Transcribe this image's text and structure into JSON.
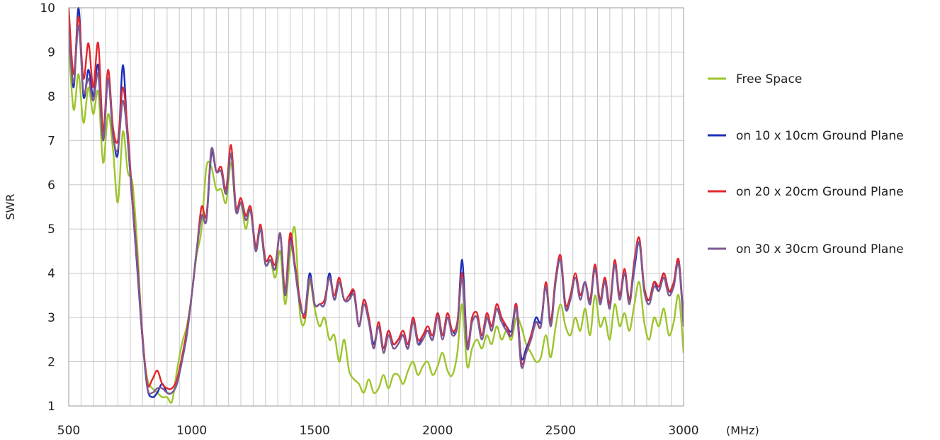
{
  "chart_data": {
    "type": "line",
    "xlabel": "(MHz)",
    "ylabel": "SWR",
    "xlim": [
      500,
      3000
    ],
    "ylim": [
      1,
      10
    ],
    "x_ticks": [
      500,
      1000,
      1500,
      2000,
      2500,
      3000
    ],
    "y_ticks": [
      1,
      2,
      3,
      4,
      5,
      6,
      7,
      8,
      9,
      10
    ],
    "grid": true,
    "legend_position": "right",
    "series": [
      {
        "name": "Free Space",
        "color": "#9dc52c",
        "x": [
          500,
          520,
          540,
          560,
          580,
          600,
          620,
          640,
          660,
          680,
          700,
          720,
          740,
          760,
          780,
          800,
          820,
          840,
          860,
          880,
          900,
          920,
          940,
          960,
          980,
          1000,
          1020,
          1040,
          1060,
          1080,
          1100,
          1120,
          1140,
          1160,
          1180,
          1200,
          1220,
          1240,
          1260,
          1280,
          1300,
          1320,
          1340,
          1360,
          1380,
          1400,
          1420,
          1440,
          1460,
          1480,
          1500,
          1520,
          1540,
          1560,
          1580,
          1600,
          1620,
          1640,
          1660,
          1680,
          1700,
          1720,
          1740,
          1760,
          1780,
          1800,
          1820,
          1840,
          1860,
          1880,
          1900,
          1920,
          1940,
          1960,
          1980,
          2000,
          2020,
          2040,
          2060,
          2080,
          2100,
          2120,
          2140,
          2160,
          2180,
          2200,
          2220,
          2240,
          2260,
          2280,
          2300,
          2320,
          2340,
          2360,
          2380,
          2400,
          2420,
          2440,
          2460,
          2480,
          2500,
          2520,
          2540,
          2560,
          2580,
          2600,
          2620,
          2640,
          2660,
          2680,
          2700,
          2720,
          2740,
          2760,
          2780,
          2800,
          2820,
          2840,
          2860,
          2880,
          2900,
          2920,
          2940,
          2960,
          2980,
          3000
        ],
        "y": [
          9.2,
          7.7,
          8.5,
          7.4,
          8.2,
          7.6,
          8.1,
          6.5,
          7.6,
          6.8,
          5.6,
          7.2,
          6.3,
          6.0,
          4.5,
          2.5,
          1.6,
          1.4,
          1.3,
          1.2,
          1.2,
          1.1,
          1.8,
          2.4,
          2.8,
          3.5,
          4.4,
          5.0,
          6.4,
          6.4,
          5.9,
          5.9,
          5.6,
          6.5,
          5.4,
          5.6,
          5.0,
          5.5,
          4.5,
          5.0,
          4.2,
          4.3,
          3.9,
          4.5,
          3.3,
          4.4,
          5.0,
          3.1,
          2.9,
          3.8,
          3.2,
          2.8,
          3.0,
          2.5,
          2.6,
          2.0,
          2.5,
          1.8,
          1.6,
          1.5,
          1.3,
          1.6,
          1.3,
          1.4,
          1.7,
          1.4,
          1.7,
          1.7,
          1.5,
          1.8,
          2.0,
          1.7,
          1.9,
          2.0,
          1.7,
          1.9,
          2.2,
          1.8,
          1.7,
          2.2,
          3.3,
          1.9,
          2.3,
          2.5,
          2.3,
          2.6,
          2.4,
          2.8,
          2.5,
          2.7,
          2.5,
          3.0,
          2.8,
          2.4,
          2.2,
          2.0,
          2.1,
          2.6,
          2.1,
          2.8,
          3.3,
          2.8,
          2.6,
          3.0,
          2.7,
          3.2,
          2.6,
          3.5,
          2.8,
          3.0,
          2.5,
          3.3,
          2.8,
          3.1,
          2.7,
          3.3,
          3.8,
          2.9,
          2.5,
          3.0,
          2.8,
          3.2,
          2.6,
          2.9,
          3.5,
          2.2
        ]
      },
      {
        "name": "on 10 x 10cm Ground Plane",
        "color": "#1d2fb8",
        "x": [
          500,
          520,
          540,
          560,
          580,
          600,
          620,
          640,
          660,
          680,
          700,
          720,
          740,
          760,
          780,
          800,
          820,
          840,
          860,
          880,
          900,
          920,
          940,
          960,
          980,
          1000,
          1020,
          1040,
          1060,
          1080,
          1100,
          1120,
          1140,
          1160,
          1180,
          1200,
          1220,
          1240,
          1260,
          1280,
          1300,
          1320,
          1340,
          1360,
          1380,
          1400,
          1420,
          1440,
          1460,
          1480,
          1500,
          1520,
          1540,
          1560,
          1580,
          1600,
          1620,
          1640,
          1660,
          1680,
          1700,
          1720,
          1740,
          1760,
          1780,
          1800,
          1820,
          1840,
          1860,
          1880,
          1900,
          1920,
          1940,
          1960,
          1980,
          2000,
          2020,
          2040,
          2060,
          2080,
          2100,
          2120,
          2140,
          2160,
          2180,
          2200,
          2220,
          2240,
          2260,
          2280,
          2300,
          2320,
          2340,
          2360,
          2380,
          2400,
          2420,
          2440,
          2460,
          2480,
          2500,
          2520,
          2540,
          2560,
          2580,
          2600,
          2620,
          2640,
          2660,
          2680,
          2700,
          2720,
          2740,
          2760,
          2780,
          2800,
          2820,
          2840,
          2860,
          2880,
          2900,
          2920,
          2940,
          2960,
          2980,
          3000
        ],
        "y": [
          9.8,
          8.2,
          10.0,
          8.0,
          8.6,
          8.0,
          8.7,
          7.0,
          8.4,
          7.2,
          6.7,
          8.7,
          7.0,
          5.5,
          4.0,
          2.5,
          1.4,
          1.2,
          1.3,
          1.5,
          1.3,
          1.3,
          1.5,
          2.0,
          2.6,
          3.5,
          4.5,
          5.3,
          5.2,
          6.7,
          6.3,
          6.3,
          5.8,
          6.7,
          5.4,
          5.6,
          5.3,
          5.4,
          4.6,
          5.0,
          4.2,
          4.3,
          4.1,
          4.9,
          3.5,
          4.8,
          4.1,
          3.3,
          3.1,
          4.0,
          3.3,
          3.3,
          3.3,
          4.0,
          3.4,
          3.8,
          3.4,
          3.4,
          3.6,
          2.8,
          3.4,
          3.0,
          2.4,
          2.8,
          2.3,
          2.7,
          2.4,
          2.5,
          2.6,
          2.3,
          3.0,
          2.4,
          2.6,
          2.7,
          2.5,
          3.1,
          2.6,
          3.0,
          2.7,
          2.8,
          4.3,
          2.4,
          2.9,
          3.0,
          2.5,
          3.0,
          2.8,
          3.2,
          2.9,
          2.8,
          2.7,
          3.3,
          2.1,
          2.3,
          2.6,
          3.0,
          2.9,
          3.7,
          2.9,
          3.9,
          4.3,
          3.2,
          3.5,
          3.9,
          3.5,
          3.8,
          3.3,
          4.2,
          3.3,
          3.9,
          3.3,
          4.2,
          3.5,
          4.0,
          3.4,
          4.1,
          4.7,
          3.6,
          3.4,
          3.8,
          3.6,
          4.0,
          3.6,
          3.7,
          4.3,
          2.9
        ]
      },
      {
        "name": "on 20 x 20cm Ground Plane",
        "color": "#e3262d",
        "x": [
          500,
          520,
          540,
          560,
          580,
          600,
          620,
          640,
          660,
          680,
          700,
          720,
          740,
          760,
          780,
          800,
          820,
          840,
          860,
          880,
          900,
          920,
          940,
          960,
          980,
          1000,
          1020,
          1040,
          1060,
          1080,
          1100,
          1120,
          1140,
          1160,
          1180,
          1200,
          1220,
          1240,
          1260,
          1280,
          1300,
          1320,
          1340,
          1360,
          1380,
          1400,
          1420,
          1440,
          1460,
          1480,
          1500,
          1520,
          1540,
          1560,
          1580,
          1600,
          1620,
          1640,
          1660,
          1680,
          1700,
          1720,
          1740,
          1760,
          1780,
          1800,
          1820,
          1840,
          1860,
          1880,
          1900,
          1920,
          1940,
          1960,
          1980,
          2000,
          2020,
          2040,
          2060,
          2080,
          2100,
          2120,
          2140,
          2160,
          2180,
          2200,
          2220,
          2240,
          2260,
          2280,
          2300,
          2320,
          2340,
          2360,
          2380,
          2400,
          2420,
          2440,
          2460,
          2480,
          2500,
          2520,
          2540,
          2560,
          2580,
          2600,
          2620,
          2640,
          2660,
          2680,
          2700,
          2720,
          2740,
          2760,
          2780,
          2800,
          2820,
          2840,
          2860,
          2880,
          2900,
          2920,
          2940,
          2960,
          2980,
          3000
        ],
        "y": [
          10.0,
          8.5,
          9.8,
          8.4,
          9.2,
          8.2,
          9.2,
          7.2,
          8.6,
          7.3,
          7.0,
          8.2,
          7.2,
          5.6,
          4.2,
          2.6,
          1.5,
          1.6,
          1.8,
          1.5,
          1.4,
          1.4,
          1.6,
          2.1,
          2.7,
          3.5,
          4.5,
          5.5,
          5.3,
          6.8,
          6.3,
          6.4,
          5.9,
          6.9,
          5.5,
          5.7,
          5.3,
          5.5,
          4.6,
          5.1,
          4.3,
          4.4,
          4.2,
          4.9,
          3.6,
          4.9,
          4.2,
          3.4,
          3.0,
          3.9,
          3.3,
          3.3,
          3.4,
          3.9,
          3.5,
          3.9,
          3.4,
          3.5,
          3.6,
          2.8,
          3.4,
          3.0,
          2.3,
          2.9,
          2.3,
          2.7,
          2.4,
          2.5,
          2.7,
          2.4,
          3.0,
          2.5,
          2.6,
          2.8,
          2.6,
          3.1,
          2.6,
          3.1,
          2.7,
          2.9,
          4.0,
          2.4,
          3.0,
          3.1,
          2.6,
          3.1,
          2.8,
          3.3,
          3.0,
          2.8,
          2.6,
          3.3,
          2.0,
          2.2,
          2.6,
          2.9,
          2.8,
          3.8,
          2.9,
          3.9,
          4.4,
          3.3,
          3.5,
          4.0,
          3.5,
          3.8,
          3.4,
          4.2,
          3.4,
          3.9,
          3.3,
          4.3,
          3.5,
          4.1,
          3.4,
          4.3,
          4.8,
          3.7,
          3.4,
          3.8,
          3.7,
          4.0,
          3.6,
          3.8,
          4.3,
          2.8
        ]
      },
      {
        "name": "on 30 x 30cm Ground Plane",
        "color": "#7e5a92",
        "x": [
          500,
          520,
          540,
          560,
          580,
          600,
          620,
          640,
          660,
          680,
          700,
          720,
          740,
          760,
          780,
          800,
          820,
          840,
          860,
          880,
          900,
          920,
          940,
          960,
          980,
          1000,
          1020,
          1040,
          1060,
          1080,
          1100,
          1120,
          1140,
          1160,
          1180,
          1200,
          1220,
          1240,
          1260,
          1280,
          1300,
          1320,
          1340,
          1360,
          1380,
          1400,
          1420,
          1440,
          1460,
          1480,
          1500,
          1520,
          1540,
          1560,
          1580,
          1600,
          1620,
          1640,
          1660,
          1680,
          1700,
          1720,
          1740,
          1760,
          1780,
          1800,
          1820,
          1840,
          1860,
          1880,
          1900,
          1920,
          1940,
          1960,
          1980,
          2000,
          2020,
          2040,
          2060,
          2080,
          2100,
          2120,
          2140,
          2160,
          2180,
          2200,
          2220,
          2240,
          2260,
          2280,
          2300,
          2320,
          2340,
          2360,
          2380,
          2400,
          2420,
          2440,
          2460,
          2480,
          2500,
          2520,
          2540,
          2560,
          2580,
          2600,
          2620,
          2640,
          2660,
          2680,
          2700,
          2720,
          2740,
          2760,
          2780,
          2800,
          2820,
          2840,
          2860,
          2880,
          2900,
          2920,
          2940,
          2960,
          2980,
          3000
        ],
        "y": [
          9.4,
          8.3,
          9.6,
          8.1,
          8.4,
          7.9,
          8.5,
          7.0,
          8.4,
          7.1,
          6.8,
          7.9,
          7.0,
          5.5,
          4.1,
          2.5,
          1.4,
          1.3,
          1.4,
          1.4,
          1.3,
          1.3,
          1.5,
          2.0,
          2.6,
          3.5,
          4.5,
          5.3,
          5.2,
          6.8,
          6.3,
          6.3,
          5.8,
          6.7,
          5.4,
          5.6,
          5.2,
          5.4,
          4.5,
          5.0,
          4.2,
          4.3,
          4.1,
          4.9,
          3.5,
          4.7,
          4.1,
          3.3,
          3.1,
          3.9,
          3.3,
          3.3,
          3.3,
          3.9,
          3.4,
          3.8,
          3.4,
          3.4,
          3.5,
          2.8,
          3.3,
          2.9,
          2.3,
          2.8,
          2.2,
          2.6,
          2.3,
          2.4,
          2.6,
          2.3,
          2.9,
          2.4,
          2.5,
          2.7,
          2.5,
          3.0,
          2.5,
          3.0,
          2.6,
          2.8,
          3.9,
          2.3,
          2.9,
          3.0,
          2.5,
          3.0,
          2.7,
          3.2,
          2.9,
          2.7,
          2.6,
          3.2,
          1.9,
          2.2,
          2.5,
          2.9,
          2.8,
          3.7,
          2.8,
          3.8,
          4.3,
          3.2,
          3.4,
          3.9,
          3.4,
          3.8,
          3.3,
          4.1,
          3.3,
          3.8,
          3.2,
          4.2,
          3.4,
          4.0,
          3.3,
          4.2,
          4.7,
          3.6,
          3.3,
          3.7,
          3.6,
          3.9,
          3.5,
          3.7,
          4.2,
          2.8
        ]
      }
    ]
  }
}
